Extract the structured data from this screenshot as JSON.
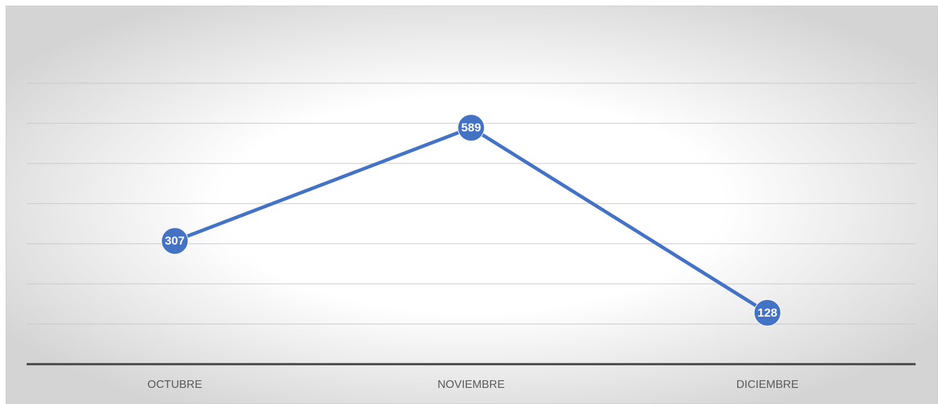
{
  "chart_data": {
    "type": "line",
    "categories": [
      "OCTUBRE",
      "NOVIEMBRE",
      "DICIEMBRE"
    ],
    "values": [
      307,
      589,
      128
    ],
    "color": "#4472c4",
    "ylim": [
      0,
      700
    ],
    "yticks": [
      0,
      100,
      200,
      300,
      400,
      500,
      600,
      700
    ],
    "grid": true
  }
}
